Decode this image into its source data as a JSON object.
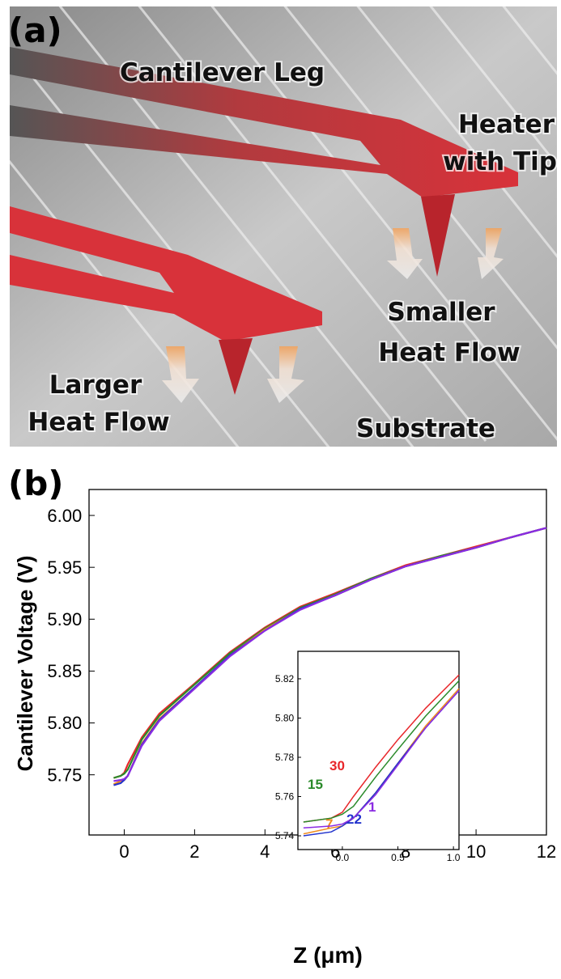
{
  "panel_a": {
    "panel_label": "(a)",
    "cantilever_leg": "Cantilever Leg",
    "heater_line1": "Heater",
    "heater_line2": "with Tip",
    "smaller_line1": "Smaller",
    "smaller_line2": "Heat Flow",
    "larger_line1": "Larger",
    "larger_line2": "Heat Flow",
    "substrate": "Substrate"
  },
  "panel_b_label": "(b)",
  "chart_data": [
    {
      "type": "line",
      "xlabel": "Z (μm)",
      "ylabel": "Cantilever Voltage (V)",
      "xlim": [
        -1,
        12
      ],
      "ylim": [
        5.692,
        6.025
      ],
      "xticks": [
        0,
        2,
        4,
        6,
        8,
        10,
        12
      ],
      "yticks": [
        {
          "value": 5.75,
          "label": "5.75"
        },
        {
          "value": 5.8,
          "label": "5.80"
        },
        {
          "value": 5.85,
          "label": "5.85"
        },
        {
          "value": 5.9,
          "label": "5.90"
        },
        {
          "value": 5.95,
          "label": "5.95"
        },
        {
          "value": 6.0,
          "label": "6.00"
        }
      ],
      "x": [
        -0.3,
        -0.1,
        0,
        0.1,
        0.5,
        1,
        2,
        3,
        4,
        5,
        6,
        7,
        8,
        9,
        10,
        11,
        12
      ],
      "series": [
        {
          "color": "#e8262a",
          "values": [
            5.747,
            5.749,
            5.752,
            5.76,
            5.786,
            5.809,
            5.838,
            5.868,
            5.892,
            5.912,
            5.925,
            5.939,
            5.952,
            5.961,
            5.97,
            5.979,
            5.988
          ]
        },
        {
          "color": "#2a8a2a",
          "values": [
            5.747,
            5.749,
            5.751,
            5.755,
            5.784,
            5.807,
            5.837,
            5.867,
            5.891,
            5.911,
            5.924,
            5.939,
            5.951,
            5.961,
            5.969,
            5.979,
            5.988
          ]
        },
        {
          "color": "#f08c1e",
          "values": [
            5.741,
            5.744,
            5.745,
            5.749,
            5.78,
            5.804,
            5.834,
            5.865,
            5.89,
            5.91,
            5.923,
            5.938,
            5.951,
            5.96,
            5.969,
            5.979,
            5.988
          ]
        },
        {
          "color": "#2233cc",
          "values": [
            5.74,
            5.742,
            5.745,
            5.749,
            5.779,
            5.803,
            5.834,
            5.865,
            5.889,
            5.91,
            5.923,
            5.938,
            5.951,
            5.96,
            5.969,
            5.979,
            5.988
          ]
        },
        {
          "color": "#8a2be2",
          "values": [
            5.744,
            5.745,
            5.746,
            5.749,
            5.778,
            5.802,
            5.833,
            5.864,
            5.889,
            5.909,
            5.923,
            5.938,
            5.951,
            5.96,
            5.969,
            5.979,
            5.988
          ]
        }
      ]
    },
    {
      "type": "line",
      "xlim": [
        -0.4,
        1.05
      ],
      "ylim": [
        5.733,
        5.834
      ],
      "xticks": [
        {
          "value": 0,
          "label": "0.0"
        },
        {
          "value": 0.5,
          "label": "0.5"
        },
        {
          "value": 1,
          "label": "1.0"
        }
      ],
      "yticks": [
        5.74,
        5.76,
        5.78,
        {
          "value": 5.8,
          "label": "5.80"
        },
        5.82
      ],
      "x": [
        -0.35,
        -0.1,
        0,
        0.1,
        0.3,
        0.5,
        0.75,
        1.05
      ],
      "series": [
        {
          "name": "30",
          "color": "#e8262a",
          "values": [
            5.747,
            5.749,
            5.752,
            5.76,
            5.775,
            5.789,
            5.805,
            5.822
          ]
        },
        {
          "name": "15",
          "color": "#2a8a2a",
          "values": [
            5.747,
            5.749,
            5.751,
            5.755,
            5.77,
            5.784,
            5.801,
            5.819
          ]
        },
        {
          "name": "7",
          "color": "#f08c1e",
          "values": [
            5.741,
            5.744,
            5.745,
            5.749,
            5.762,
            5.777,
            5.796,
            5.815
          ]
        },
        {
          "name": "22",
          "color": "#2233cc",
          "values": [
            5.74,
            5.742,
            5.745,
            5.749,
            5.762,
            5.777,
            5.795,
            5.814
          ]
        },
        {
          "name": "1",
          "color": "#8a2be2",
          "values": [
            5.744,
            5.745,
            5.746,
            5.749,
            5.761,
            5.776,
            5.795,
            5.814
          ]
        }
      ]
    }
  ]
}
